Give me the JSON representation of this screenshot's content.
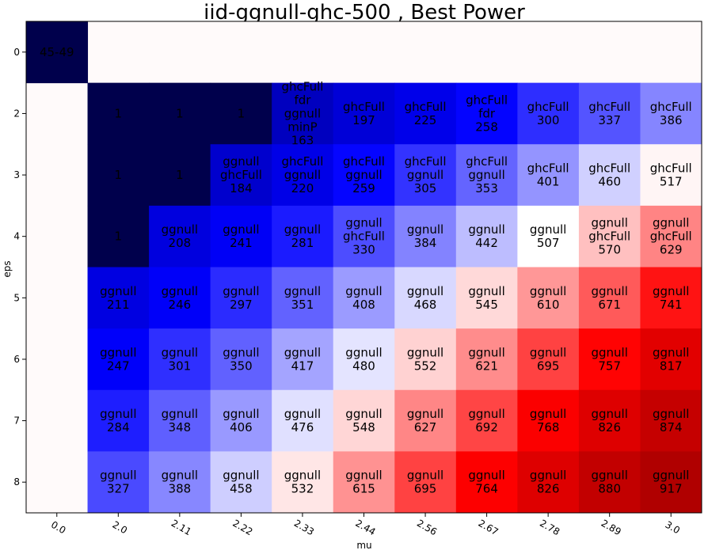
{
  "chart_data": {
    "type": "heatmap",
    "title": "iid-ggnull-ghc-500 , Best Power",
    "xlabel": "mu",
    "ylabel": "eps",
    "x_categories": [
      "0.0",
      "2.0",
      "2.11",
      "2.22",
      "2.33",
      "2.44",
      "2.56",
      "2.67",
      "2.78",
      "2.89",
      "3.0"
    ],
    "y_categories": [
      "0",
      "2",
      "3",
      "4",
      "5",
      "6",
      "7",
      "8"
    ],
    "colormap": "seismic",
    "cells": [
      {
        "x": "0.0",
        "y": "0",
        "value": 1,
        "label": "45-49"
      },
      {
        "x": "2.0",
        "y": "2",
        "value": 1,
        "label": "1"
      },
      {
        "x": "2.11",
        "y": "2",
        "value": 1,
        "label": "1"
      },
      {
        "x": "2.22",
        "y": "2",
        "value": 1,
        "label": "1"
      },
      {
        "x": "2.33",
        "y": "2",
        "value": 163,
        "label": "ghcFull\nfdr\nggnull\nminP\n163"
      },
      {
        "x": "2.44",
        "y": "2",
        "value": 197,
        "label": "ghcFull\n197"
      },
      {
        "x": "2.56",
        "y": "2",
        "value": 225,
        "label": "ghcFull\n225"
      },
      {
        "x": "2.67",
        "y": "2",
        "value": 258,
        "label": "ghcFull\nfdr\n258"
      },
      {
        "x": "2.78",
        "y": "2",
        "value": 300,
        "label": "ghcFull\n300"
      },
      {
        "x": "2.89",
        "y": "2",
        "value": 337,
        "label": "ghcFull\n337"
      },
      {
        "x": "3.0",
        "y": "2",
        "value": 386,
        "label": "ghcFull\n386"
      },
      {
        "x": "2.0",
        "y": "3",
        "value": 1,
        "label": "1"
      },
      {
        "x": "2.11",
        "y": "3",
        "value": 1,
        "label": "1"
      },
      {
        "x": "2.22",
        "y": "3",
        "value": 184,
        "label": "ggnull\nghcFull\n184"
      },
      {
        "x": "2.33",
        "y": "3",
        "value": 220,
        "label": "ghcFull\nggnull\n220"
      },
      {
        "x": "2.44",
        "y": "3",
        "value": 259,
        "label": "ghcFull\nggnull\n259"
      },
      {
        "x": "2.56",
        "y": "3",
        "value": 305,
        "label": "ghcFull\nggnull\n305"
      },
      {
        "x": "2.67",
        "y": "3",
        "value": 353,
        "label": "ghcFull\nggnull\n353"
      },
      {
        "x": "2.78",
        "y": "3",
        "value": 401,
        "label": "ghcFull\n401"
      },
      {
        "x": "2.89",
        "y": "3",
        "value": 460,
        "label": "ghcFull\n460"
      },
      {
        "x": "3.0",
        "y": "3",
        "value": 517,
        "label": "ghcFull\n517"
      },
      {
        "x": "2.0",
        "y": "4",
        "value": 1,
        "label": "1"
      },
      {
        "x": "2.11",
        "y": "4",
        "value": 208,
        "label": "ggnull\n208"
      },
      {
        "x": "2.22",
        "y": "4",
        "value": 241,
        "label": "ggnull\n241"
      },
      {
        "x": "2.33",
        "y": "4",
        "value": 281,
        "label": "ggnull\n281"
      },
      {
        "x": "2.44",
        "y": "4",
        "value": 330,
        "label": "ggnull\nghcFull\n330"
      },
      {
        "x": "2.56",
        "y": "4",
        "value": 384,
        "label": "ggnull\n384"
      },
      {
        "x": "2.67",
        "y": "4",
        "value": 442,
        "label": "ggnull\n442"
      },
      {
        "x": "2.78",
        "y": "4",
        "value": 507,
        "label": "ggnull\n507"
      },
      {
        "x": "2.89",
        "y": "4",
        "value": 570,
        "label": "ggnull\nghcFull\n570"
      },
      {
        "x": "3.0",
        "y": "4",
        "value": 629,
        "label": "ggnull\nghcFull\n629"
      },
      {
        "x": "2.0",
        "y": "5",
        "value": 211,
        "label": "ggnull\n211"
      },
      {
        "x": "2.11",
        "y": "5",
        "value": 246,
        "label": "ggnull\n246"
      },
      {
        "x": "2.22",
        "y": "5",
        "value": 297,
        "label": "ggnull\n297"
      },
      {
        "x": "2.33",
        "y": "5",
        "value": 351,
        "label": "ggnull\n351"
      },
      {
        "x": "2.44",
        "y": "5",
        "value": 408,
        "label": "ggnull\n408"
      },
      {
        "x": "2.56",
        "y": "5",
        "value": 468,
        "label": "ggnull\n468"
      },
      {
        "x": "2.67",
        "y": "5",
        "value": 545,
        "label": "ggnull\n545"
      },
      {
        "x": "2.78",
        "y": "5",
        "value": 610,
        "label": "ggnull\n610"
      },
      {
        "x": "2.89",
        "y": "5",
        "value": 671,
        "label": "ggnull\n671"
      },
      {
        "x": "3.0",
        "y": "5",
        "value": 741,
        "label": "ggnull\n741"
      },
      {
        "x": "2.0",
        "y": "6",
        "value": 247,
        "label": "ggnull\n247"
      },
      {
        "x": "2.11",
        "y": "6",
        "value": 301,
        "label": "ggnull\n301"
      },
      {
        "x": "2.22",
        "y": "6",
        "value": 350,
        "label": "ggnull\n350"
      },
      {
        "x": "2.33",
        "y": "6",
        "value": 417,
        "label": "ggnull\n417"
      },
      {
        "x": "2.44",
        "y": "6",
        "value": 480,
        "label": "ggnull\n480"
      },
      {
        "x": "2.56",
        "y": "6",
        "value": 552,
        "label": "ggnull\n552"
      },
      {
        "x": "2.67",
        "y": "6",
        "value": 621,
        "label": "ggnull\n621"
      },
      {
        "x": "2.78",
        "y": "6",
        "value": 695,
        "label": "ggnull\n695"
      },
      {
        "x": "2.89",
        "y": "6",
        "value": 757,
        "label": "ggnull\n757"
      },
      {
        "x": "3.0",
        "y": "6",
        "value": 817,
        "label": "ggnull\n817"
      },
      {
        "x": "2.0",
        "y": "7",
        "value": 284,
        "label": "ggnull\n284"
      },
      {
        "x": "2.11",
        "y": "7",
        "value": 348,
        "label": "ggnull\n348"
      },
      {
        "x": "2.22",
        "y": "7",
        "value": 406,
        "label": "ggnull\n406"
      },
      {
        "x": "2.33",
        "y": "7",
        "value": 476,
        "label": "ggnull\n476"
      },
      {
        "x": "2.44",
        "y": "7",
        "value": 548,
        "label": "ggnull\n548"
      },
      {
        "x": "2.56",
        "y": "7",
        "value": 627,
        "label": "ggnull\n627"
      },
      {
        "x": "2.67",
        "y": "7",
        "value": 692,
        "label": "ggnull\n692"
      },
      {
        "x": "2.78",
        "y": "7",
        "value": 768,
        "label": "ggnull\n768"
      },
      {
        "x": "2.89",
        "y": "7",
        "value": 826,
        "label": "ggnull\n826"
      },
      {
        "x": "3.0",
        "y": "7",
        "value": 874,
        "label": "ggnull\n874"
      },
      {
        "x": "2.0",
        "y": "8",
        "value": 327,
        "label": "ggnull\n327"
      },
      {
        "x": "2.11",
        "y": "8",
        "value": 388,
        "label": "ggnull\n388"
      },
      {
        "x": "2.22",
        "y": "8",
        "value": 458,
        "label": "ggnull\n458"
      },
      {
        "x": "2.33",
        "y": "8",
        "value": 532,
        "label": "ggnull\n532"
      },
      {
        "x": "2.44",
        "y": "8",
        "value": 615,
        "label": "ggnull\n615"
      },
      {
        "x": "2.56",
        "y": "8",
        "value": 695,
        "label": "ggnull\n695"
      },
      {
        "x": "2.67",
        "y": "8",
        "value": 764,
        "label": "ggnull\n764"
      },
      {
        "x": "2.78",
        "y": "8",
        "value": 826,
        "label": "ggnull\n826"
      },
      {
        "x": "2.89",
        "y": "8",
        "value": 880,
        "label": "ggnull\n880"
      },
      {
        "x": "3.0",
        "y": "8",
        "value": 917,
        "label": "ggnull\n917"
      }
    ]
  }
}
